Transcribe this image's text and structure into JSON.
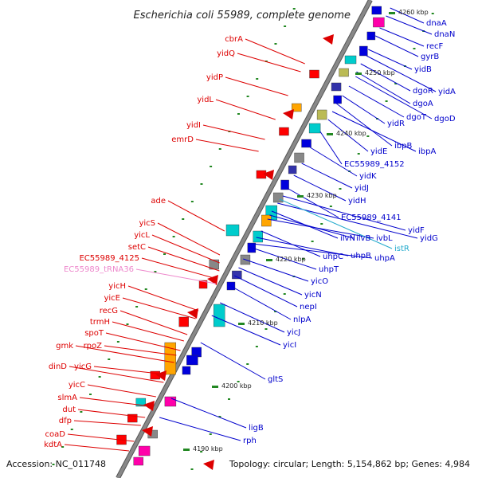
{
  "title": "Escherichia coli 55989, complete genome",
  "footer": {
    "accession": "Accession: NC_011748",
    "summary": "Topology: circular; Length: 5,154,862 bp; Genes: 4,984"
  },
  "ticks": [
    "4260 kbp",
    "4250 kbp",
    "4240 kbp",
    "4230 kbp",
    "4220 kbp",
    "4210 kbp",
    "4200 kbp",
    "4190 kbp"
  ],
  "colors": {
    "left_genes": "#dd0000",
    "right_genes": "#0000cc",
    "trna": "#ee88cc",
    "misc": "#22aacc",
    "backbone": "#888888",
    "ticks": "#228822"
  },
  "left_labels": [
    "cbrA",
    "yidQ",
    "yidP",
    "yidL",
    "yidI",
    "emrD",
    "ade",
    "yicS",
    "yicL",
    "setC",
    "EC55989_4125",
    "EC55989_tRNA36",
    "yicH",
    "yicE",
    "recG",
    "trmH",
    "spoT",
    "gmk",
    "rpoZ",
    "dinD",
    "yicG",
    "yicC",
    "slmA",
    "dut",
    "dfp",
    "coaD",
    "kdtA"
  ],
  "right_labels": [
    "dnaA",
    "dnaN",
    "recF",
    "gyrB",
    "yidB",
    "yidA",
    "dgoR",
    "dgoA",
    "dgoT",
    "dgoD",
    "yidR",
    "ibpB",
    "ibpA",
    "yidE",
    "EC55989_4152",
    "yidK",
    "yidJ",
    "yidH",
    "EC55989_4141",
    "yidF",
    "yidG",
    "ilvN",
    "ilvB",
    "ivbL",
    "istR",
    "uhpC",
    "uhpB",
    "uhpA",
    "uhpT",
    "yicO",
    "yicN",
    "nepI",
    "nlpA",
    "yicJ",
    "yicI",
    "gltS",
    "ligB",
    "rph"
  ]
}
